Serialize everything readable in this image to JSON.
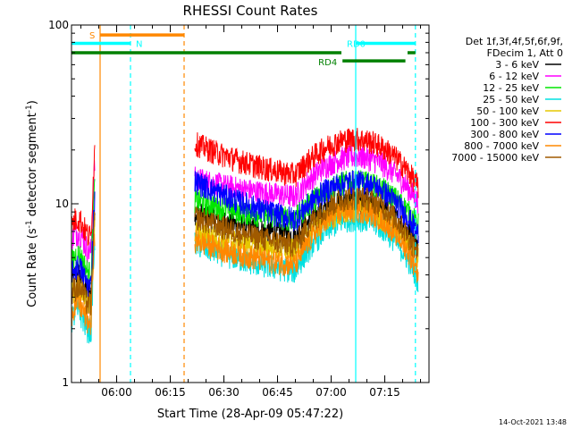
{
  "chart_data": {
    "type": "line",
    "title": "RHESSI Count Rates",
    "xlabel": "Start Time (28-Apr-09 05:47:22)",
    "ylabel_parts": {
      "main": "Count Rate (s",
      "sup1": "-1",
      "middle": " detector segment",
      "sup2": "-1",
      "end": ")"
    },
    "y_scale": "log",
    "ylim": [
      1,
      100
    ],
    "y_ticks": [
      {
        "value": 1,
        "label": "1"
      },
      {
        "value": 10,
        "label": "10"
      },
      {
        "value": 100,
        "label": "100"
      }
    ],
    "x_unit": "minutes after 05:47:22",
    "xlim": [
      0,
      100
    ],
    "x_ticks": [
      {
        "t": 12.63,
        "label": "06:00"
      },
      {
        "t": 27.63,
        "label": "06:15"
      },
      {
        "t": 42.63,
        "label": "06:30"
      },
      {
        "t": 57.63,
        "label": "06:45"
      },
      {
        "t": 72.63,
        "label": "07:00"
      },
      {
        "t": 87.63,
        "label": "07:15"
      }
    ],
    "legend_header": [
      "Det 1f,3f,4f,5f,6f,9f,",
      "FDecim 1, Att 0"
    ],
    "legend_position": "right",
    "series": [
      {
        "name": "3 - 6 keV",
        "color": "#000000",
        "start": 9.0,
        "lo": 5.8,
        "hi": 10.0
      },
      {
        "name": "6 - 12 keV",
        "color": "#ff00ff",
        "start": 14.0,
        "lo": 10.0,
        "hi": 18.0
      },
      {
        "name": "12 - 25 keV",
        "color": "#00e600",
        "start": 10.5,
        "lo": 7.5,
        "hi": 13.0
      },
      {
        "name": "25 - 50 keV",
        "color": "#00e0e0",
        "start": 6.0,
        "lo": 3.6,
        "hi": 8.0
      },
      {
        "name": "50 - 100 keV",
        "color": "#e6c800",
        "start": 7.0,
        "lo": 5.0,
        "hi": 9.0
      },
      {
        "name": "100 - 300 keV",
        "color": "#ff0000",
        "start": 22.0,
        "lo": 12.0,
        "hi": 22.0
      },
      {
        "name": "300 - 800 keV",
        "color": "#0000ff",
        "start": 13.5,
        "lo": 6.4,
        "hi": 12.5
      },
      {
        "name": "800 - 7000 keV",
        "color": "#ff8800",
        "start": 6.3,
        "lo": 4.0,
        "hi": 9.0
      },
      {
        "name": "7000 - 15000 keV",
        "color": "#a05a00",
        "start": 8.5,
        "lo": 5.0,
        "hi": 10.5
      }
    ],
    "pre_gap_segment": {
      "x_start": 0,
      "x_end": 6.5,
      "level_factor": 0.62
    },
    "data_gap": [
      6.5,
      34.5
    ],
    "flag_bars": [
      {
        "label": "S",
        "color": "#ff8800",
        "x_start": 8.0,
        "x_end": 31.5,
        "y_level": 88
      },
      {
        "label": "N",
        "color": "#00ffff",
        "x_start": 0,
        "x_end": 16.5,
        "y_level": 79
      },
      {
        "label": "RD0",
        "color": "#00ffff",
        "x_start": 79.5,
        "x_end": 96.2,
        "y_level": 79
      },
      {
        "label": "",
        "color": "#008000",
        "x_start": 0,
        "x_end": 75.5,
        "y_level": 70
      },
      {
        "label": "RD4",
        "color": "#008000",
        "x_start": 75.8,
        "x_end": 93.4,
        "y_level": 63
      },
      {
        "label": "",
        "color": "#008000",
        "x_start": 94.0,
        "x_end": 96.2,
        "y_level": 70
      }
    ],
    "vertical_markers": [
      {
        "t": 8.0,
        "color": "#ff8800",
        "style": "solid"
      },
      {
        "t": 16.5,
        "color": "#00ffff",
        "style": "dashed"
      },
      {
        "t": 31.5,
        "color": "#ff8800",
        "style": "dashed"
      },
      {
        "t": 79.5,
        "color": "#00ffff",
        "style": "solid"
      },
      {
        "t": 96.2,
        "color": "#00ffff",
        "style": "dashed"
      }
    ],
    "footer_timestamp": "14-Oct-2021 13:48"
  }
}
